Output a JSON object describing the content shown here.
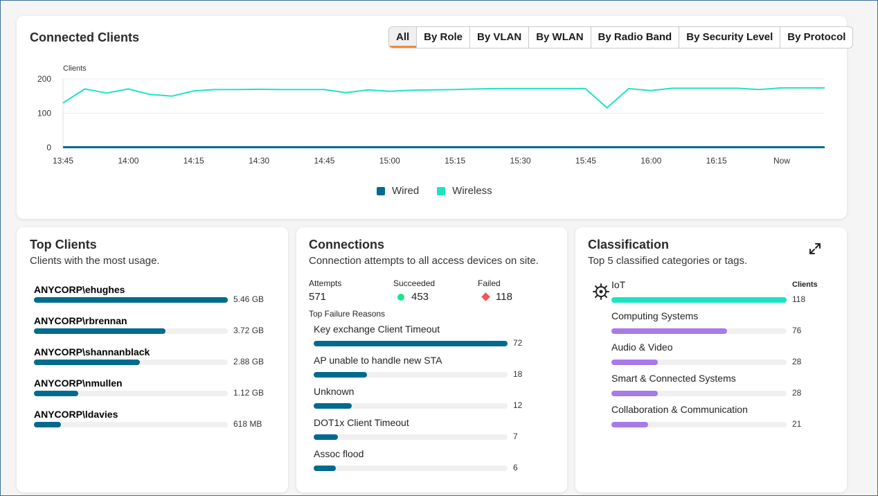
{
  "colors": {
    "wired": "#006b8f",
    "wireless": "#1de3c6",
    "bar_blue": "#006b8f",
    "bar_purple": "#a77ae8",
    "bar_teal": "#1de3c6",
    "succeeded": "#1de38a",
    "failed": "#f25757",
    "tab_accent": "#f28c38"
  },
  "connected_clients": {
    "title": "Connected Clients",
    "tabs": [
      "All",
      "By Role",
      "By VLAN",
      "By WLAN",
      "By Radio Band",
      "By Security Level",
      "By Protocol"
    ],
    "active_tab": "All",
    "legend": {
      "wired": "Wired",
      "wireless": "Wireless"
    }
  },
  "chart_data": {
    "type": "line",
    "ylabel": "Clients",
    "xlabel": "",
    "ylim": [
      0,
      200
    ],
    "yticks": [
      0,
      100,
      200
    ],
    "x_tick_labels": [
      "13:45",
      "14:00",
      "14:15",
      "14:30",
      "14:45",
      "15:00",
      "15:15",
      "15:30",
      "15:45",
      "16:00",
      "16:15",
      "Now"
    ],
    "series": [
      {
        "name": "Wireless",
        "color": "#1de3c6",
        "values": [
          130,
          171,
          159,
          171,
          155,
          150,
          165,
          169,
          169,
          170,
          169,
          169,
          169,
          160,
          168,
          164,
          167,
          168,
          169,
          171,
          172,
          172,
          172,
          172,
          172,
          116,
          172,
          166,
          173,
          173,
          173,
          173,
          169,
          174,
          174,
          174
        ]
      },
      {
        "name": "Wired",
        "color": "#006b8f",
        "values": [
          1,
          1,
          1,
          1,
          1,
          1,
          1,
          1,
          1,
          1,
          1,
          1,
          1,
          1,
          1,
          1,
          1,
          1,
          1,
          1,
          1,
          1,
          1,
          1,
          1,
          1,
          1,
          1,
          1,
          1,
          1,
          1,
          1,
          1,
          1,
          1
        ]
      }
    ]
  },
  "top_clients": {
    "title": "Top Clients",
    "subtitle": "Clients with the most usage.",
    "items": [
      {
        "name": "ANYCORP\\ehughes",
        "value": "5.46 GB",
        "fraction": 1.0
      },
      {
        "name": "ANYCORP\\rbrennan",
        "value": "3.72 GB",
        "fraction": 0.68
      },
      {
        "name": "ANYCORP\\shannanblack",
        "value": "2.88 GB",
        "fraction": 0.545
      },
      {
        "name": "ANYCORP\\nmullen",
        "value": "1.12 GB",
        "fraction": 0.23
      },
      {
        "name": "ANYCORP\\ldavies",
        "value": "618 MB",
        "fraction": 0.14
      }
    ]
  },
  "connections": {
    "title": "Connections",
    "subtitle": "Connection attempts to all access devices on site.",
    "attempts_label": "Attempts",
    "attempts_value": "571",
    "succeeded_label": "Succeeded",
    "succeeded_value": "453",
    "failed_label": "Failed",
    "failed_value": "118",
    "failure_title": "Top Failure Reasons",
    "failures": [
      {
        "label": "Key exchange Client Timeout",
        "value": "72",
        "fraction": 1.0
      },
      {
        "label": "AP unable to handle new STA",
        "value": "18",
        "fraction": 0.275
      },
      {
        "label": "Unknown",
        "value": "12",
        "fraction": 0.195
      },
      {
        "label": "DOT1x Client Timeout",
        "value": "7",
        "fraction": 0.125
      },
      {
        "label": "Assoc flood",
        "value": "6",
        "fraction": 0.115
      }
    ]
  },
  "classification": {
    "title": "Classification",
    "subtitle": "Top 5 classified categories or tags.",
    "clients_header": "Clients",
    "items": [
      {
        "label": "IoT",
        "value": "118",
        "fraction": 1.0,
        "color": "#1de3c6"
      },
      {
        "label": "Computing Systems",
        "value": "76",
        "fraction": 0.66,
        "color": "#a77ae8"
      },
      {
        "label": "Audio & Video",
        "value": "28",
        "fraction": 0.265,
        "color": "#a77ae8"
      },
      {
        "label": "Smart & Connected Systems",
        "value": "28",
        "fraction": 0.265,
        "color": "#a77ae8"
      },
      {
        "label": "Collaboration & Communication",
        "value": "21",
        "fraction": 0.21,
        "color": "#a77ae8"
      }
    ]
  }
}
